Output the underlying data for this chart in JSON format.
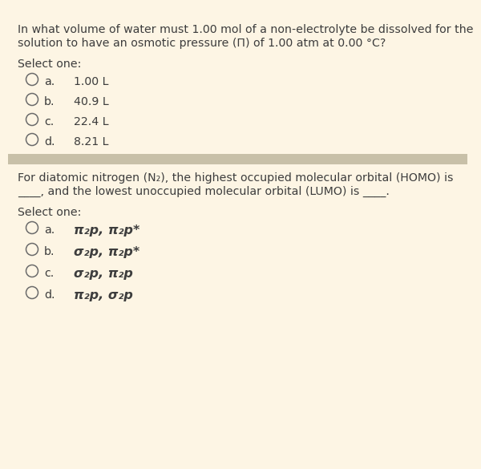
{
  "bg_color": "#fdf5e4",
  "divider_color": "#c8c0a8",
  "text_color": "#3d3d3d",
  "circle_edge_color": "#6b6b6b",
  "q1_line1": "In what volume of water must 1.00 mol of a non-electrolyte be dissolved for the",
  "q1_line2": "solution to have an osmotic pressure (Π) of 1.00 atm at 0.00 °C?",
  "select_one": "Select one:",
  "q1_options": [
    [
      "a.",
      "1.00 L"
    ],
    [
      "b.",
      "40.9 L"
    ],
    [
      "c.",
      "22.4 L"
    ],
    [
      "d.",
      "8.21 L"
    ]
  ],
  "q2_line1": "For diatomic nitrogen (N₂), the highest occupied molecular orbital (HOMO) is",
  "q2_line2": "____, and the lowest unoccupied molecular orbital (LUMO) is ____.",
  "q2_options": [
    [
      "a.",
      "π₂p, π₂p*"
    ],
    [
      "b.",
      "σ₂p, π₂p*"
    ],
    [
      "c.",
      "σ₂p, π₂p"
    ],
    [
      "d.",
      "π₂p, σ₂p"
    ]
  ],
  "q1_opt_bold": [
    false,
    false,
    false,
    false
  ],
  "q2_opt_bold": [
    true,
    true,
    true,
    true
  ]
}
